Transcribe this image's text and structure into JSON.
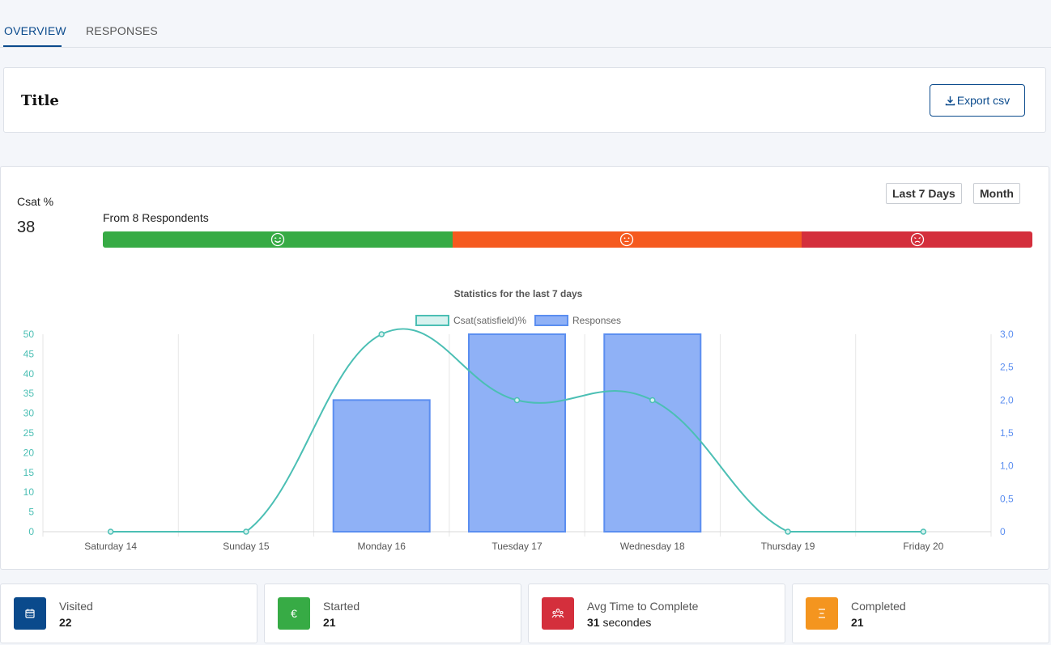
{
  "tabs": [
    {
      "label": "OVERVIEW",
      "active": true
    },
    {
      "label": "RESPONSES",
      "active": false
    }
  ],
  "header": {
    "title": "Title",
    "export_label": "Export csv"
  },
  "csat": {
    "label": "Csat %",
    "value": "38",
    "respondents_text": "From 8 Respondents",
    "period_buttons": [
      "Last 7 Days",
      "Month"
    ],
    "segments": [
      {
        "icon": "smile-icon",
        "color": "#37ab45",
        "share": 0.376
      },
      {
        "icon": "neutral-face-icon",
        "color": "#f55a1f",
        "share": 0.376
      },
      {
        "icon": "sad-face-icon",
        "color": "#d42f3c",
        "share": 0.248
      }
    ]
  },
  "chart_data": {
    "type": "bar",
    "title": "Statistics for the last 7 days",
    "categories": [
      "Saturday 14",
      "Sunday 15",
      "Monday 16",
      "Tuesday 17",
      "Wednesday 18",
      "Thursday 19",
      "Friday 20"
    ],
    "series": [
      {
        "name": "Csat(satisfield)%",
        "type": "line",
        "axis": "left",
        "values": [
          0,
          0,
          50,
          33.3,
          33.3,
          0,
          0
        ],
        "color": "#4bbfb4",
        "fill": "#d7f2ef"
      },
      {
        "name": "Responses",
        "type": "bar",
        "axis": "right",
        "values": [
          0,
          0,
          2,
          3,
          3,
          0,
          0
        ],
        "color": "#5b8ef0",
        "fill": "#8fb1f6"
      }
    ],
    "y_left": {
      "min": 0,
      "max": 50,
      "ticks": [
        "0",
        "5",
        "10",
        "15",
        "20",
        "25",
        "30",
        "35",
        "40",
        "45",
        "50"
      ],
      "color": "#4bbfb4"
    },
    "y_right": {
      "min": 0,
      "max": 3,
      "ticks": [
        "0",
        "0,5",
        "1,0",
        "1,5",
        "2,0",
        "2,5",
        "3,0"
      ],
      "color": "#5b8ef0"
    },
    "legend": "top-center",
    "grid": true
  },
  "stats": [
    {
      "label": "Visited",
      "value": "22",
      "suffix": "",
      "icon": "calendar-icon",
      "color": "#0a4a8c"
    },
    {
      "label": "Started",
      "value": "21",
      "suffix": "",
      "icon": "euro-icon",
      "color": "#37ab45"
    },
    {
      "label": "Avg Time to Complete",
      "value": "31",
      "suffix": " secondes",
      "icon": "users-icon",
      "color": "#d42f3c"
    },
    {
      "label": "Completed",
      "value": "21",
      "suffix": "",
      "icon": "list-icon",
      "color": "#f4951f"
    }
  ]
}
